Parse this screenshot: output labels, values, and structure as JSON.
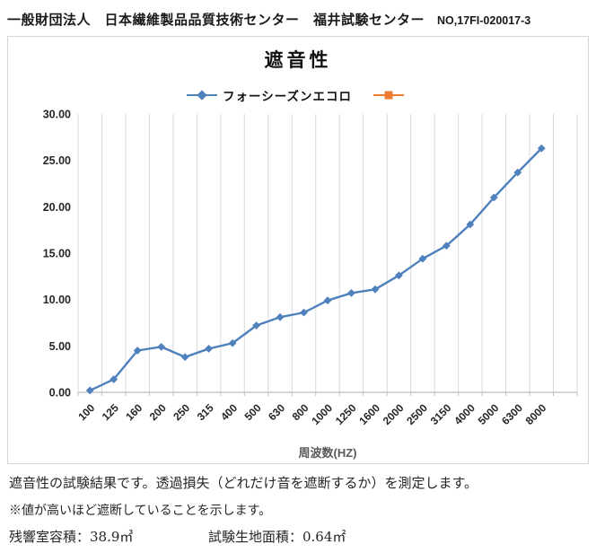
{
  "header": {
    "org": "一般財団法人　日本繊維製品品質技術センター　福井試験センター",
    "report_no": "NO,17FI-020017-3"
  },
  "chart_data": {
    "type": "line",
    "title": "遮音性",
    "categories": [
      "100",
      "125",
      "160",
      "200",
      "250",
      "315",
      "400",
      "500",
      "630",
      "800",
      "1000",
      "1250",
      "1600",
      "2000",
      "2500",
      "3150",
      "4000",
      "5000",
      "6300",
      "8000"
    ],
    "series": [
      {
        "name": "フォーシーズンエコロ",
        "marker": "diamond",
        "color": "#4F81BD",
        "values": [
          0.2,
          1.4,
          4.5,
          4.9,
          3.8,
          4.7,
          5.3,
          7.2,
          8.1,
          8.6,
          9.9,
          10.7,
          11.1,
          12.6,
          14.4,
          15.8,
          18.1,
          21.0,
          23.7,
          26.3
        ]
      },
      {
        "name": "",
        "marker": "square",
        "color": "#ED7D31",
        "values": []
      }
    ],
    "xlabel": "周波数(HZ)",
    "ylabel": "",
    "ylim": [
      0,
      30
    ],
    "y_tick_step": 5,
    "y_tick_labels": [
      "0.00",
      "5.00",
      "10.00",
      "15.00",
      "20.00",
      "25.00",
      "30.00"
    ],
    "grid": "vertical-only",
    "gridline_color": "#D9D9D9",
    "axis_line_color": "#BFBFBF",
    "tick_label_color": "#262626",
    "axis_title_color": "#595959",
    "legend_position": "top"
  },
  "notes": {
    "line1": "遮音性の試験結果です。透過損失（どれだけ音を遮断するか）を測定します。",
    "line2": "※値が高いほど遮断していることを示します。",
    "spec_volume": "残響室容積：38.9㎥",
    "spec_area": "試験生地面積：0.64㎡"
  }
}
